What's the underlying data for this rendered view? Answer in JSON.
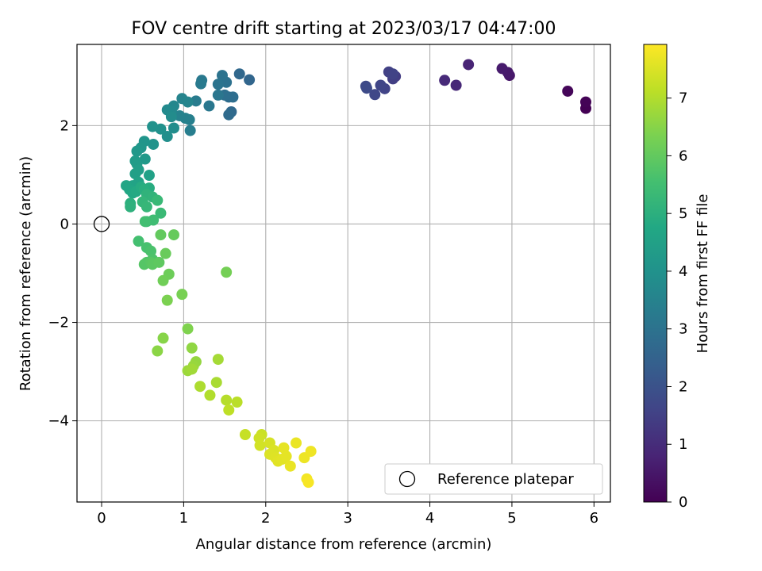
{
  "chart_data": {
    "type": "scatter",
    "title": "FOV centre drift starting at 2023/03/17 04:47:00",
    "xlabel": "Angular distance from reference (arcmin)",
    "ylabel": "Rotation from reference (arcmin)",
    "xlim": [
      -0.3,
      6.2
    ],
    "ylim": [
      -5.65,
      3.65
    ],
    "xticks": [
      0,
      1,
      2,
      3,
      4,
      5,
      6
    ],
    "yticks": [
      -4,
      -2,
      0,
      2
    ],
    "grid": true,
    "colormap": "viridis",
    "colorbar": {
      "label": "Hours from first FF file",
      "min": 0,
      "max": 7.93,
      "ticks": [
        0,
        1,
        2,
        3,
        4,
        5,
        6,
        7
      ]
    },
    "legend": {
      "placement": "lower right",
      "entries": [
        "Reference platepar"
      ]
    },
    "reference_point": {
      "x": 0,
      "y": 0
    },
    "points": [
      [
        5.9,
        2.35,
        0.0
      ],
      [
        5.9,
        2.48,
        0.05
      ],
      [
        5.68,
        2.7,
        0.12
      ],
      [
        4.97,
        3.02,
        0.5
      ],
      [
        4.95,
        3.08,
        0.55
      ],
      [
        4.88,
        3.16,
        0.6
      ],
      [
        4.47,
        3.24,
        0.8
      ],
      [
        4.32,
        2.82,
        0.9
      ],
      [
        4.18,
        2.92,
        0.95
      ],
      [
        3.58,
        3.0,
        1.4
      ],
      [
        3.55,
        2.95,
        1.45
      ],
      [
        3.5,
        3.09,
        1.5
      ],
      [
        3.55,
        3.05,
        1.55
      ],
      [
        3.45,
        2.75,
        1.6
      ],
      [
        3.4,
        2.82,
        1.65
      ],
      [
        3.33,
        2.63,
        1.7
      ],
      [
        3.22,
        2.8,
        1.75
      ],
      [
        3.23,
        2.76,
        1.8
      ],
      [
        1.8,
        2.93,
        2.6
      ],
      [
        1.68,
        3.05,
        2.65
      ],
      [
        1.58,
        2.28,
        2.7
      ],
      [
        1.55,
        2.22,
        2.75
      ],
      [
        1.55,
        2.58,
        2.8
      ],
      [
        1.6,
        2.58,
        2.85
      ],
      [
        1.5,
        2.62,
        2.9
      ],
      [
        1.52,
        2.88,
        2.95
      ],
      [
        1.47,
        3.02,
        3.0
      ],
      [
        1.42,
        2.84,
        3.05
      ],
      [
        1.42,
        2.62,
        3.1
      ],
      [
        1.31,
        2.4,
        3.15
      ],
      [
        1.22,
        2.92,
        3.2
      ],
      [
        1.21,
        2.85,
        3.25
      ],
      [
        1.15,
        2.5,
        3.3
      ],
      [
        1.08,
        1.9,
        3.35
      ],
      [
        1.07,
        2.12,
        3.4
      ],
      [
        1.02,
        2.15,
        3.45
      ],
      [
        0.95,
        2.2,
        3.5
      ],
      [
        0.98,
        2.55,
        3.55
      ],
      [
        1.05,
        2.48,
        3.6
      ],
      [
        0.88,
        2.4,
        3.65
      ],
      [
        0.85,
        2.3,
        3.7
      ],
      [
        0.8,
        2.32,
        3.75
      ],
      [
        0.85,
        2.18,
        3.8
      ],
      [
        0.88,
        1.95,
        3.85
      ],
      [
        0.8,
        1.78,
        3.9
      ],
      [
        0.72,
        1.93,
        3.95
      ],
      [
        0.62,
        1.98,
        4.0
      ],
      [
        0.63,
        1.62,
        4.05
      ],
      [
        0.52,
        1.68,
        4.1
      ],
      [
        0.48,
        1.55,
        4.15
      ],
      [
        0.43,
        1.48,
        4.2
      ],
      [
        0.53,
        1.32,
        4.25
      ],
      [
        0.41,
        1.28,
        4.3
      ],
      [
        0.43,
        1.22,
        4.35
      ],
      [
        0.45,
        1.1,
        4.4
      ],
      [
        0.41,
        1.02,
        4.45
      ],
      [
        0.58,
        0.99,
        4.5
      ],
      [
        0.45,
        0.85,
        4.55
      ],
      [
        0.38,
        0.78,
        4.6
      ],
      [
        0.3,
        0.78,
        4.65
      ],
      [
        0.34,
        0.7,
        4.7
      ],
      [
        0.38,
        0.63,
        4.75
      ],
      [
        0.42,
        0.66,
        4.8
      ],
      [
        0.48,
        0.75,
        4.85
      ],
      [
        0.58,
        0.73,
        4.9
      ],
      [
        0.52,
        0.7,
        4.95
      ],
      [
        0.35,
        0.42,
        5.0
      ],
      [
        0.35,
        0.35,
        5.05
      ],
      [
        0.55,
        0.6,
        5.1
      ],
      [
        0.62,
        0.55,
        5.15
      ],
      [
        0.5,
        0.45,
        5.2
      ],
      [
        0.55,
        0.35,
        5.25
      ],
      [
        0.68,
        0.48,
        5.3
      ],
      [
        0.72,
        0.22,
        5.35
      ],
      [
        0.55,
        0.05,
        5.4
      ],
      [
        0.63,
        0.08,
        5.45
      ],
      [
        0.53,
        0.05,
        5.5
      ],
      [
        0.45,
        -0.35,
        5.55
      ],
      [
        0.55,
        -0.48,
        5.6
      ],
      [
        0.6,
        -0.55,
        5.65
      ],
      [
        0.62,
        -0.72,
        5.7
      ],
      [
        0.55,
        -0.78,
        5.75
      ],
      [
        0.52,
        -0.82,
        5.8
      ],
      [
        0.6,
        -0.78,
        5.85
      ],
      [
        0.62,
        -0.82,
        5.9
      ],
      [
        0.7,
        -0.78,
        5.95
      ],
      [
        0.72,
        -0.22,
        6.0
      ],
      [
        0.88,
        -0.22,
        6.05
      ],
      [
        0.78,
        -0.6,
        6.1
      ],
      [
        0.82,
        -1.02,
        6.15
      ],
      [
        0.75,
        -1.15,
        6.2
      ],
      [
        1.52,
        -0.98,
        6.25
      ],
      [
        0.98,
        -1.43,
        6.3
      ],
      [
        0.8,
        -1.55,
        6.35
      ],
      [
        1.05,
        -2.13,
        6.4
      ],
      [
        0.75,
        -2.32,
        6.5
      ],
      [
        0.68,
        -2.58,
        6.55
      ],
      [
        1.1,
        -2.52,
        6.6
      ],
      [
        1.15,
        -2.8,
        6.65
      ],
      [
        1.12,
        -2.88,
        6.7
      ],
      [
        1.05,
        -2.98,
        6.75
      ],
      [
        1.1,
        -2.95,
        6.8
      ],
      [
        1.42,
        -2.75,
        6.85
      ],
      [
        1.4,
        -3.22,
        6.9
      ],
      [
        1.2,
        -3.3,
        6.95
      ],
      [
        1.32,
        -3.48,
        7.0
      ],
      [
        1.52,
        -3.58,
        7.05
      ],
      [
        1.65,
        -3.62,
        7.1
      ],
      [
        1.55,
        -3.78,
        7.15
      ],
      [
        1.75,
        -4.28,
        7.25
      ],
      [
        1.95,
        -4.28,
        7.3
      ],
      [
        1.92,
        -4.35,
        7.35
      ],
      [
        1.93,
        -4.5,
        7.4
      ],
      [
        2.05,
        -4.45,
        7.45
      ],
      [
        2.1,
        -4.6,
        7.5
      ],
      [
        2.05,
        -4.68,
        7.52
      ],
      [
        2.12,
        -4.75,
        7.55
      ],
      [
        2.15,
        -4.82,
        7.58
      ],
      [
        2.2,
        -4.78,
        7.6
      ],
      [
        2.25,
        -4.72,
        7.63
      ],
      [
        2.22,
        -4.55,
        7.65
      ],
      [
        2.3,
        -4.92,
        7.68
      ],
      [
        2.37,
        -4.45,
        7.7
      ],
      [
        2.47,
        -4.75,
        7.73
      ],
      [
        2.55,
        -4.62,
        7.76
      ],
      [
        2.5,
        -5.18,
        7.8
      ],
      [
        2.52,
        -5.25,
        7.85
      ]
    ]
  }
}
